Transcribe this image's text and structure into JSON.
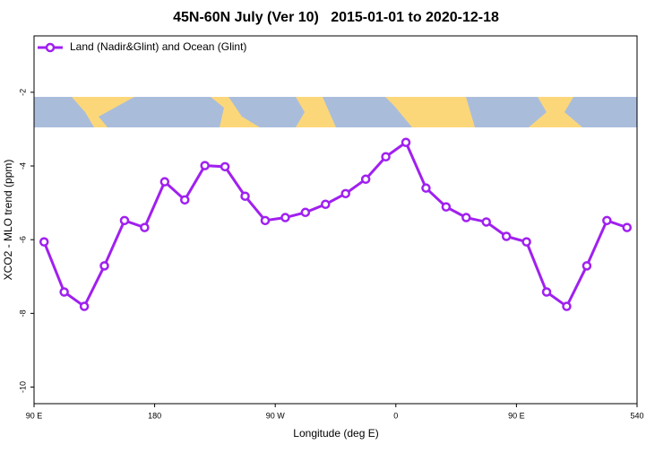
{
  "chart_data": {
    "type": "line",
    "title": "45N-60N July (Ver 10)   2015-01-01 to 2020-12-18",
    "x_label": "Longitude (deg E)",
    "y_label": "XCO2 - MLO trend (ppm)",
    "x": [
      97.5,
      112.5,
      127.5,
      142.5,
      157.5,
      172.5,
      187.5,
      202.5,
      217.5,
      232.5,
      247.5,
      262.5,
      277.5,
      292.5,
      307.5,
      322.5,
      337.5,
      352.5,
      367.5,
      382.5,
      397.5,
      412.5,
      427.5,
      442.5,
      457.5,
      472.5,
      487.5,
      502.5,
      517.5,
      532.5
    ],
    "series": [
      {
        "name": "Land (Nadir&Glint) and Ocean (Glint)",
        "color": "#a020f0",
        "values": [
          -6.06,
          -7.42,
          -7.81,
          -6.71,
          -5.48,
          -5.67,
          -4.43,
          -4.92,
          -3.99,
          -4.02,
          -4.82,
          -5.48,
          -5.4,
          -5.26,
          -5.04,
          -4.75,
          -4.36,
          -3.75,
          -3.36,
          -4.6,
          -5.11,
          -5.4,
          -5.52,
          -5.91,
          -6.06,
          -7.42,
          -7.81,
          -6.71,
          -5.48,
          -5.67
        ]
      }
    ],
    "xlim": [
      90,
      540
    ],
    "xticks": [
      {
        "value": 90,
        "label": "90 E"
      },
      180,
      {
        "value": 270,
        "label": "90 W"
      },
      {
        "value": 360,
        "label": "0"
      },
      {
        "value": 450,
        "label": "90 E"
      },
      540
    ],
    "ylim": [
      -10.45,
      -0.47
    ],
    "yticks": [
      -10,
      -8,
      -6,
      -4,
      -2
    ],
    "legend": "top-left"
  }
}
